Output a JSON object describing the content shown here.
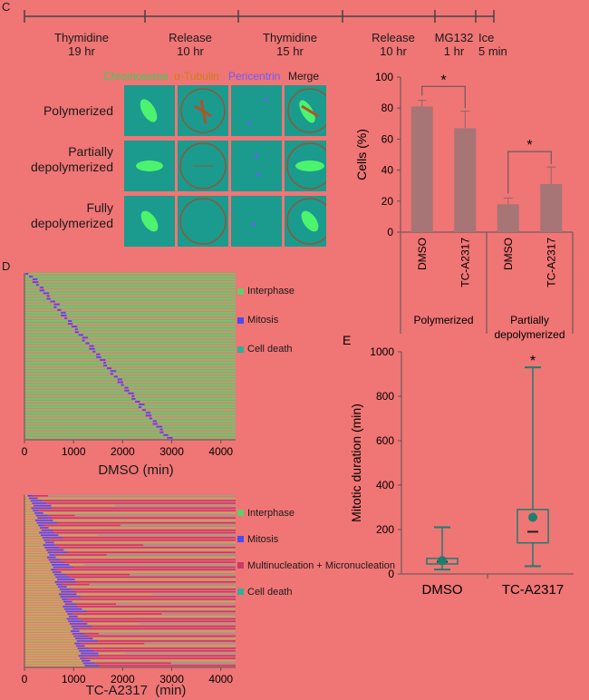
{
  "panel_C": {
    "letter": "C",
    "timeline": [
      {
        "line1": "Thymidine",
        "line2": "19 hr"
      },
      {
        "line1": "Release",
        "line2": "10 hr"
      },
      {
        "line1": "Thymidine",
        "line2": "15 hr"
      },
      {
        "line1": "Release",
        "line2": "10 hr"
      },
      {
        "line1": "MG132",
        "line2": "1 hr"
      },
      {
        "line1": "Ice",
        "line2": "5 min"
      }
    ],
    "image_headers": [
      {
        "text": "Chromosome",
        "color": "#2fd35a"
      },
      {
        "text": "α-Tubulin",
        "color": "#c8801a"
      },
      {
        "text": "Pericentrin",
        "color": "#6a5cff"
      },
      {
        "text": "Merge",
        "color": "#1a1a1a"
      }
    ],
    "rows": [
      {
        "line1": "Polymerized",
        "line2": ""
      },
      {
        "line1": "Partially",
        "line2": "depolymerized"
      },
      {
        "line1": "Fully",
        "line2": "depolymerized"
      }
    ]
  },
  "panel_C_chart": {
    "chart_data": {
      "type": "bar",
      "categories": [
        "DMSO",
        "TC-A2317",
        "DMSO",
        "TC-A2317"
      ],
      "groups": [
        "Polymerized",
        "Partially depolymerized"
      ],
      "values": [
        81,
        67,
        18,
        31
      ],
      "errors": [
        4,
        11,
        4,
        11
      ],
      "ylabel": "Cells (%)",
      "ylim": [
        0,
        100
      ],
      "yticks": [
        0,
        20,
        40,
        60,
        80,
        100
      ],
      "significance": [
        "*",
        "*"
      ],
      "bar_color": "#a77575"
    }
  },
  "panel_D": {
    "letter": "D",
    "top_xlabel": "DMSO (min)",
    "bottom_xlabel": "TC-A2317  (min)",
    "xticks": [
      "0",
      "1000",
      "2000",
      "3000",
      "4000"
    ],
    "top_legend": [
      {
        "label": "Interphase",
        "color": "#5fcf6a"
      },
      {
        "label": "Mitosis",
        "color": "#4a4cf0"
      },
      {
        "label": "Cell death",
        "color": "#2fb09a"
      }
    ],
    "bottom_legend": [
      {
        "label": "Interphase",
        "color": "#5fcf6a"
      },
      {
        "label": "Mitosis",
        "color": "#4a4cf0"
      },
      {
        "label": "Multinucleation + Micronucleation",
        "color": "#c83a6a"
      },
      {
        "label": "Cell death",
        "color": "#2fb09a"
      }
    ]
  },
  "panel_E": {
    "letter": "E",
    "chart_data": {
      "type": "box",
      "categories": [
        "DMSO",
        "TC-A2317"
      ],
      "ylabel": "Mitotic duration (min)",
      "ylim": [
        0,
        1000
      ],
      "yticks": [
        0,
        200,
        400,
        600,
        800,
        1000
      ],
      "boxes": [
        {
          "min": 20,
          "q1": 45,
          "median": 55,
          "q3": 70,
          "max": 210,
          "mean": 60
        },
        {
          "min": 35,
          "q1": 140,
          "median": 190,
          "q3": 290,
          "max": 930,
          "mean": 255
        }
      ],
      "significance": [
        "",
        "*"
      ]
    }
  }
}
